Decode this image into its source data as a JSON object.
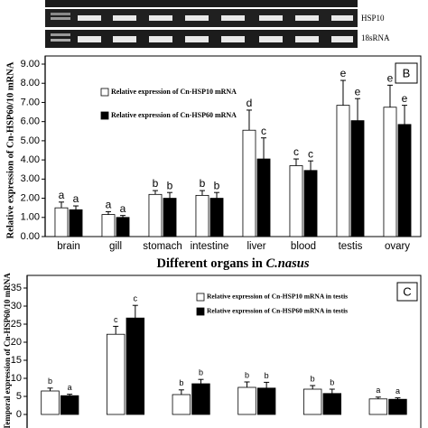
{
  "gel": {
    "labels": [
      "HSP10",
      "18sRNA"
    ]
  },
  "chart_data": [
    {
      "type": "bar",
      "panel": "B",
      "y_label": "Relative expression of Cn-HSP60/10 mRNA",
      "x_label": "Different organs in",
      "x_label_species": "C.nasus",
      "categories": [
        "brain",
        "gill",
        "stomach",
        "intestine",
        "liver",
        "blood",
        "testis",
        "ovary"
      ],
      "series": [
        {
          "name": "Relative expression of Cn-HSP10 mRNA",
          "color": "#ffffff",
          "values": [
            1.5,
            1.15,
            2.2,
            2.15,
            5.55,
            3.7,
            6.85,
            6.75
          ],
          "errors": [
            0.3,
            0.15,
            0.2,
            0.25,
            1.05,
            0.35,
            1.3,
            1.15
          ],
          "letters": [
            "a",
            "a",
            "b",
            "b",
            "d",
            "c",
            "e",
            "e"
          ]
        },
        {
          "name": "Relative expression of Cn-HSP60 mRNA",
          "color": "#000000",
          "values": [
            1.4,
            1.0,
            2.0,
            2.0,
            4.05,
            3.45,
            6.05,
            5.85
          ],
          "errors": [
            0.2,
            0.1,
            0.3,
            0.3,
            1.1,
            0.5,
            1.15,
            1.0
          ],
          "letters": [
            "a",
            "a",
            "b",
            "b",
            "c",
            "c",
            "e",
            "e"
          ]
        }
      ],
      "ylim": [
        0,
        9
      ],
      "yticks": [
        {
          "value": 0,
          "label": "0.00"
        },
        {
          "value": 1,
          "label": "1.00"
        },
        {
          "value": 2,
          "label": "2.00"
        },
        {
          "value": 3,
          "label": "3.00"
        },
        {
          "value": 4,
          "label": "4.00"
        },
        {
          "value": 5,
          "label": "5.00"
        },
        {
          "value": 6,
          "label": "6.00"
        },
        {
          "value": 7,
          "label": "7.00"
        },
        {
          "value": 8,
          "label": "8.00"
        },
        {
          "value": 9,
          "label": "9.00"
        }
      ],
      "legend": "upper left"
    },
    {
      "type": "bar",
      "panel": "C",
      "y_label": "Temporal expression of Cn-HSP60/10 mRNA",
      "categories": [
        null,
        null,
        null,
        null,
        null,
        null
      ],
      "series": [
        {
          "name": "Relative expression of Cn-HSP10 mRNA in testis",
          "color": "#ffffff",
          "values": [
            6.5,
            22.2,
            5.5,
            7.5,
            7.0,
            4.3
          ],
          "errors": [
            0.8,
            2.2,
            1.3,
            1.5,
            1.0,
            0.5
          ],
          "letters": [
            "b",
            "c",
            "b",
            "b",
            "b",
            "a"
          ]
        },
        {
          "name": "Relative expression of Cn-HSP60 mRNA in testis",
          "color": "#000000",
          "values": [
            5.2,
            26.7,
            8.5,
            7.3,
            5.8,
            4.2
          ],
          "errors": [
            0.4,
            3.5,
            1.2,
            1.6,
            1.2,
            0.4
          ],
          "letters": [
            "a",
            "c",
            "b",
            "b",
            "b",
            "a"
          ]
        }
      ],
      "ylim": [
        0,
        35
      ],
      "yticks": [
        0,
        5,
        10,
        15,
        20,
        25,
        30,
        35
      ],
      "legend": "upper center"
    }
  ]
}
